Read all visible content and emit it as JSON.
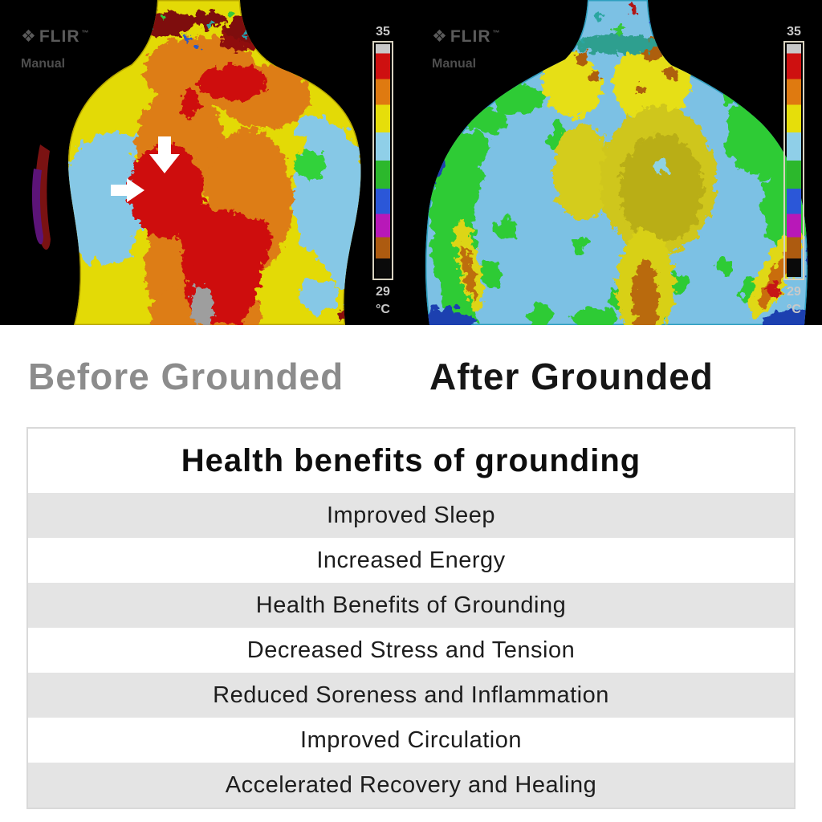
{
  "panels": {
    "before": {
      "logo_icon": "❖",
      "logo_text": "FLIR",
      "logo_tm": "™",
      "mode": "Manual",
      "scale_max": "35",
      "scale_min": "29",
      "scale_unit": "°C"
    },
    "after": {
      "logo_icon": "❖",
      "logo_text": "FLIR",
      "logo_tm": "™",
      "mode": "Manual",
      "scale_max": "35",
      "scale_min": "29",
      "scale_unit": "°C"
    }
  },
  "captions": {
    "before": "Before Grounded",
    "after": "After Grounded"
  },
  "benefits_card": {
    "title": "Health benefits of grounding",
    "rows": [
      "Improved Sleep",
      "Increased Energy",
      "Health Benefits of Grounding",
      "Decreased Stress and Tension",
      "Reduced Soreness and Inflammation",
      "Improved Circulation",
      "Accelerated Recovery and Healing"
    ]
  },
  "colors": {
    "page_background": "#ffffff",
    "thermal_background": "#000000",
    "caption_before": "#8c8c8c",
    "caption_after": "#161616",
    "row_alt": "#e4e4e4",
    "card_border": "#d9d9d9",
    "hot_red": "#ce1111",
    "warm_orange": "#dd7d14",
    "warm_yellow": "#e3da06",
    "cool_cyan": "#86c8e6",
    "cool_green": "#2ecb35",
    "scale_palette": [
      {
        "from": "0%",
        "to": "4%",
        "color": "#c8c8c8"
      },
      {
        "from": "4%",
        "to": "15%",
        "color": "#ce1010"
      },
      {
        "from": "15%",
        "to": "26%",
        "color": "#df7a10"
      },
      {
        "from": "26%",
        "to": "38%",
        "color": "#e6de0a"
      },
      {
        "from": "38%",
        "to": "50%",
        "color": "#8fcfe8"
      },
      {
        "from": "50%",
        "to": "62%",
        "color": "#2cb82c"
      },
      {
        "from": "62%",
        "to": "73%",
        "color": "#2b57d8"
      },
      {
        "from": "73%",
        "to": "83%",
        "color": "#b818b8"
      },
      {
        "from": "83%",
        "to": "92%",
        "color": "#ad5b10"
      },
      {
        "from": "92%",
        "to": "100%",
        "color": "#0a0a0a"
      }
    ]
  }
}
